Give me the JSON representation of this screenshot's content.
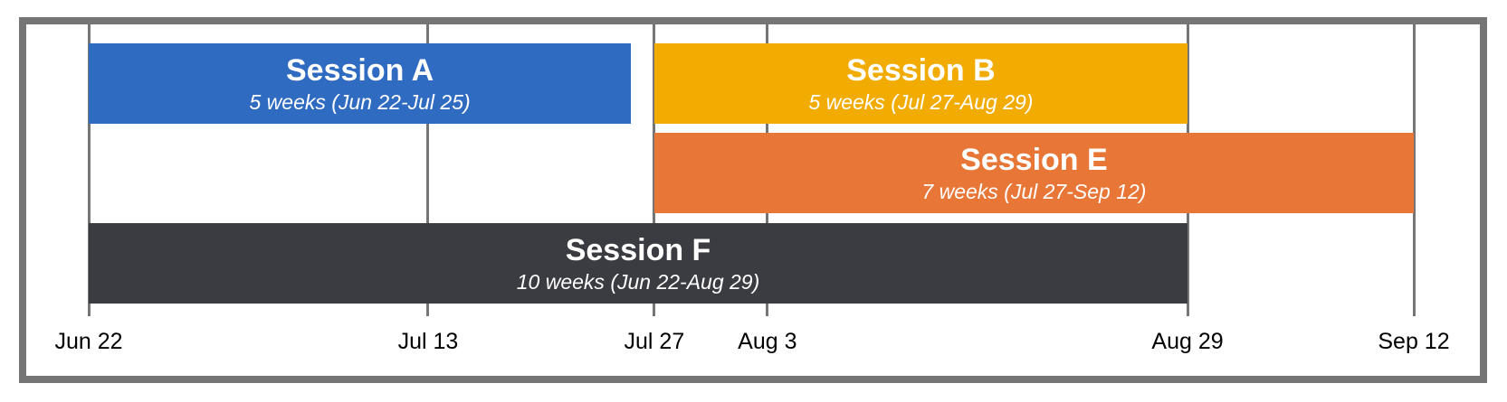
{
  "chart_data": {
    "type": "gantt",
    "year_note": "",
    "x_ticks": [
      {
        "label": "Jun 22",
        "date": "06-22"
      },
      {
        "label": "Jul 13",
        "date": "07-13"
      },
      {
        "label": "Jul 27",
        "date": "07-27"
      },
      {
        "label": "Aug 3",
        "date": "08-03"
      },
      {
        "label": "Aug 29",
        "date": "08-29"
      },
      {
        "label": "Sep 12",
        "date": "09-12"
      }
    ],
    "xlim": [
      "06-22",
      "09-12"
    ],
    "grid": true,
    "tasks": [
      {
        "name": "Session A",
        "detail": "5 weeks (Jun 22-Jul 25)",
        "start": "06-22",
        "end": "07-25",
        "row": 0,
        "color": "#2F6BC1"
      },
      {
        "name": "Session B",
        "detail": "5 weeks (Jul 27-Aug 29)",
        "start": "07-27",
        "end": "08-29",
        "row": 0,
        "color": "#F2AB00"
      },
      {
        "name": "Session E",
        "detail": "7 weeks (Jul 27-Sep 12)",
        "start": "07-27",
        "end": "09-12",
        "row": 1,
        "color": "#E87636"
      },
      {
        "name": "Session F",
        "detail": "10 weeks (Jun 22-Aug 29)",
        "start": "06-22",
        "end": "08-29",
        "row": 2,
        "color": "#3B3C41"
      }
    ],
    "colors": {
      "frame": "#757575",
      "grid": "#757575"
    }
  }
}
